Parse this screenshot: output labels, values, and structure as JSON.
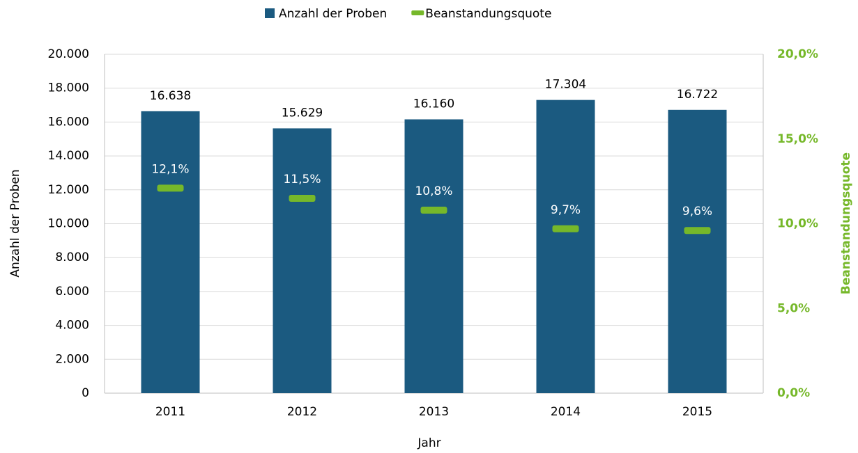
{
  "chart_data": {
    "type": "bar",
    "x_label": "Jahr",
    "y_label": "Anzahl der Proben",
    "y2_label": "Beanstandungsquote",
    "categories": [
      "2011",
      "2012",
      "2013",
      "2014",
      "2015"
    ],
    "series": [
      {
        "name": "Anzahl der Proben",
        "color": "#1b5a80",
        "type": "bar",
        "values": [
          16638,
          15629,
          16160,
          17304,
          16722
        ],
        "value_labels": [
          "16.638",
          "15.629",
          "16.160",
          "17.304",
          "16.722"
        ]
      },
      {
        "name": "Beanstandungsquote",
        "color": "#76b82a",
        "type": "marker",
        "axis": "y2",
        "values": [
          12.1,
          11.5,
          10.8,
          9.7,
          9.6
        ],
        "value_labels": [
          "12,1%",
          "11,5%",
          "10,8%",
          "9,7%",
          "9,6%"
        ]
      }
    ],
    "ylim": [
      0,
      20000
    ],
    "yticks": [
      0,
      {
        "value": 2000,
        "label": "2.000"
      },
      {
        "value": 4000,
        "label": "4.000"
      },
      {
        "value": 6000,
        "label": "6.000"
      },
      {
        "value": 8000,
        "label": "8.000"
      },
      {
        "value": 10000,
        "label": "10.000"
      },
      {
        "value": 12000,
        "label": "12.000"
      },
      {
        "value": 14000,
        "label": "14.000"
      },
      {
        "value": 16000,
        "label": "16.000"
      },
      {
        "value": 18000,
        "label": "18.000"
      },
      {
        "value": 20000,
        "label": "20.000"
      }
    ],
    "y2lim": [
      0,
      20
    ],
    "y2ticks": [
      {
        "value": 0,
        "label": "0,0%"
      },
      {
        "value": 5,
        "label": "5,0%"
      },
      {
        "value": 10,
        "label": "10,0%"
      },
      {
        "value": 15,
        "label": "15,0%"
      },
      {
        "value": 20,
        "label": "20,0%"
      }
    ],
    "grid": true,
    "legend": "top"
  }
}
